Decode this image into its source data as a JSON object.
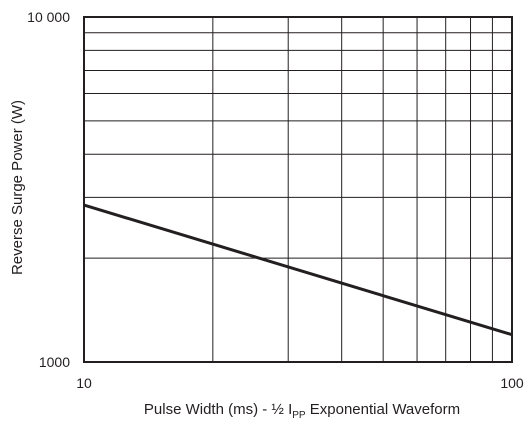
{
  "chart_data": {
    "type": "line",
    "xlabel_parts": {
      "pre": "Pulse Width (ms) - ½ I",
      "sub": "PP",
      "post": " Exponential Waveform"
    },
    "ylabel": "Reverse Surge Power (W)",
    "x_scale": "log",
    "y_scale": "log",
    "xlim": [
      10,
      100
    ],
    "ylim": [
      1000,
      10000
    ],
    "x_ticks": [
      {
        "value": 10,
        "label": "10"
      },
      {
        "value": 100,
        "label": "100"
      }
    ],
    "y_ticks": [
      {
        "value": 1000,
        "label": "1000"
      },
      {
        "value": 10000,
        "label": "10 000"
      }
    ],
    "grid": true,
    "x_grid_values": [
      20,
      30,
      40,
      50,
      60,
      70,
      80,
      90
    ],
    "y_grid_values": [
      2000,
      3000,
      4000,
      5000,
      6000,
      7000,
      8000,
      9000
    ],
    "series": [
      {
        "x": [
          10,
          100
        ],
        "y": [
          2850,
          1200
        ]
      }
    ],
    "colors": {
      "line": "#231f20",
      "grid": "#231f20",
      "frame": "#231f20"
    }
  }
}
